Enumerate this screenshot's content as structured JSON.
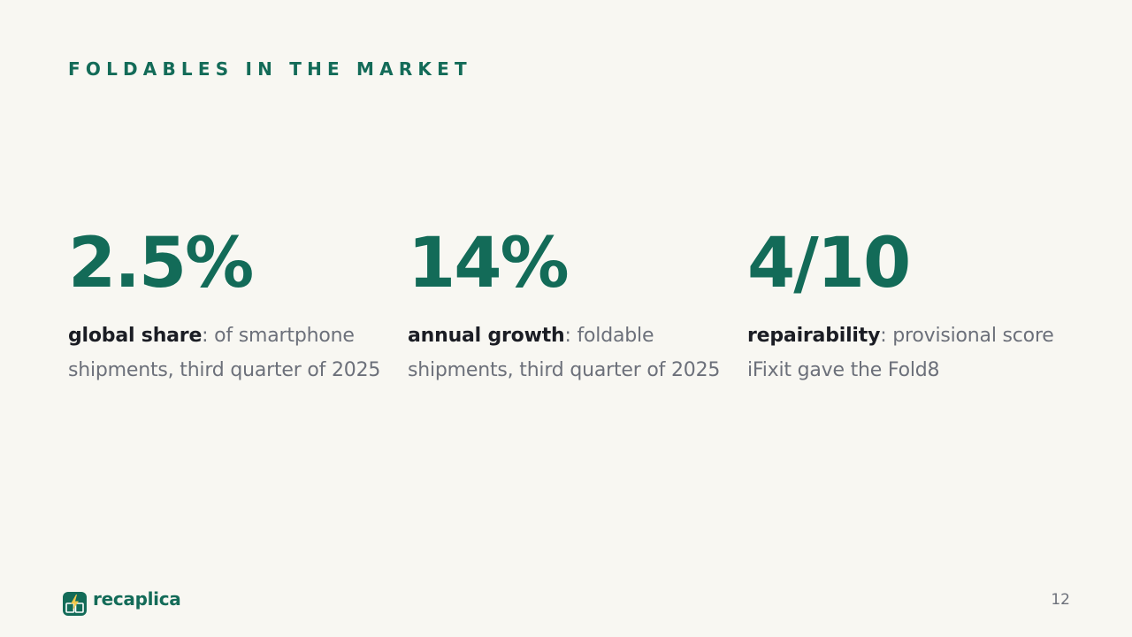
{
  "slide": {
    "eyebrow": "FOLDABLES IN THE MARKET",
    "stats": [
      {
        "value": "2.5%",
        "term": "global share",
        "description": ": of smartphone shipments, third quarter of 2025"
      },
      {
        "value": "14%",
        "term": "annual growth",
        "description": ": foldable shipments, third quarter of 2025"
      },
      {
        "value": "4/10",
        "term": "repairability",
        "description": ": provisional score iFixit gave the Fold8"
      }
    ],
    "page_number": "12"
  },
  "brand": {
    "name": "recaplica",
    "icon": "bolt-book-icon"
  },
  "colors": {
    "background": "#f8f7f2",
    "accent": "#136b58",
    "body_text": "#6c707a",
    "term_text": "#1b1d24",
    "icon_bolt": "#f2c94c"
  }
}
